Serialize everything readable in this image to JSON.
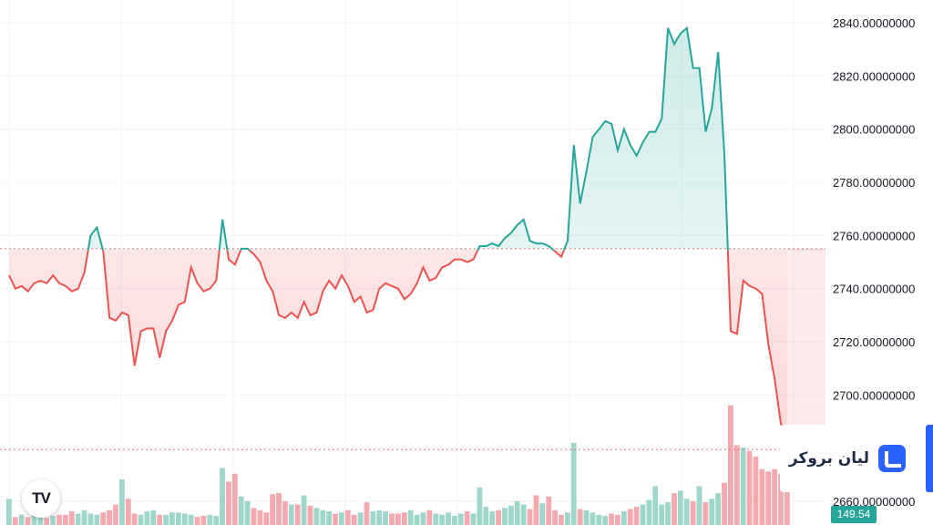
{
  "chart_data": {
    "type": "line",
    "baseline": 2755,
    "y_axis": {
      "ylim": [
        2656,
        2848
      ],
      "ticks": [
        "2660.00000000",
        "2680.00000000",
        "2700.00000000",
        "2720.00000000",
        "2740.00000000",
        "2760.00000000",
        "2780.00000000",
        "2800.00000000",
        "2820.00000000",
        "2840.00000000"
      ],
      "tick_values": [
        2660,
        2680,
        2700,
        2720,
        2740,
        2760,
        2780,
        2800,
        2820,
        2840
      ]
    },
    "grid": true,
    "colors": {
      "up": "#26a69a",
      "down": "#ef5350",
      "up_vol": "#9fd6cc",
      "down_vol": "#f4a9ae",
      "baseline": "#e57373"
    },
    "price": [
      2745,
      2740,
      2741,
      2739,
      2742,
      2743,
      2742,
      2745,
      2742,
      2741,
      2739,
      2740,
      2746,
      2760,
      2763,
      2754,
      2729,
      2728,
      2731,
      2730,
      2711,
      2724,
      2725,
      2725,
      2714,
      2724,
      2728,
      2734,
      2735,
      2748,
      2742,
      2739,
      2740,
      2743,
      2766,
      2751,
      2749,
      2755,
      2755,
      2753,
      2750,
      2743,
      2739,
      2730,
      2729,
      2731,
      2729,
      2735,
      2730,
      2731,
      2739,
      2743,
      2740,
      2745,
      2741,
      2735,
      2737,
      2731,
      2732,
      2740,
      2742,
      2741,
      2740,
      2736,
      2738,
      2742,
      2748,
      2743,
      2744,
      2748,
      2749,
      2751,
      2751,
      2750,
      2751,
      2756,
      2756,
      2757,
      2756,
      2759,
      2761,
      2764,
      2766,
      2758,
      2757,
      2757,
      2756,
      2754,
      2752,
      2758,
      2794,
      2772,
      2784,
      2797,
      2800,
      2803,
      2802,
      2792,
      2800,
      2794,
      2790,
      2795,
      2799,
      2799,
      2804,
      2838,
      2832,
      2836,
      2838,
      2823,
      2823,
      2799,
      2808,
      2829,
      2790,
      2724,
      2723,
      2743,
      2741,
      2740,
      2738,
      2719,
      2706,
      2689,
      2687
    ],
    "volume": [
      23,
      7,
      9,
      7,
      9,
      8,
      6,
      8,
      9,
      9,
      12,
      10,
      13,
      10,
      9,
      11,
      13,
      18,
      40,
      23,
      10,
      9,
      12,
      13,
      9,
      9,
      11,
      11,
      10,
      9,
      7,
      8,
      9,
      8,
      50,
      38,
      45,
      25,
      21,
      15,
      13,
      11,
      27,
      28,
      21,
      18,
      18,
      26,
      17,
      15,
      13,
      12,
      10,
      11,
      13,
      9,
      11,
      20,
      12,
      13,
      12,
      10,
      10,
      11,
      13,
      9,
      11,
      13,
      10,
      9,
      11,
      8,
      10,
      12,
      10,
      33,
      16,
      12,
      13,
      15,
      17,
      21,
      18,
      14,
      26,
      19,
      25,
      13,
      9,
      11,
      72,
      14,
      13,
      11,
      9,
      8,
      10,
      9,
      12,
      14,
      16,
      18,
      22,
      34,
      18,
      20,
      28,
      30,
      23,
      21,
      34,
      20,
      23,
      28,
      37,
      105,
      70,
      68,
      65,
      60,
      49,
      47,
      49,
      45,
      30
    ]
  },
  "last_price_label": "",
  "volume_label": "149.54",
  "brand": {
    "name": "لیان بروکر"
  },
  "tv_logo_text": "TV"
}
